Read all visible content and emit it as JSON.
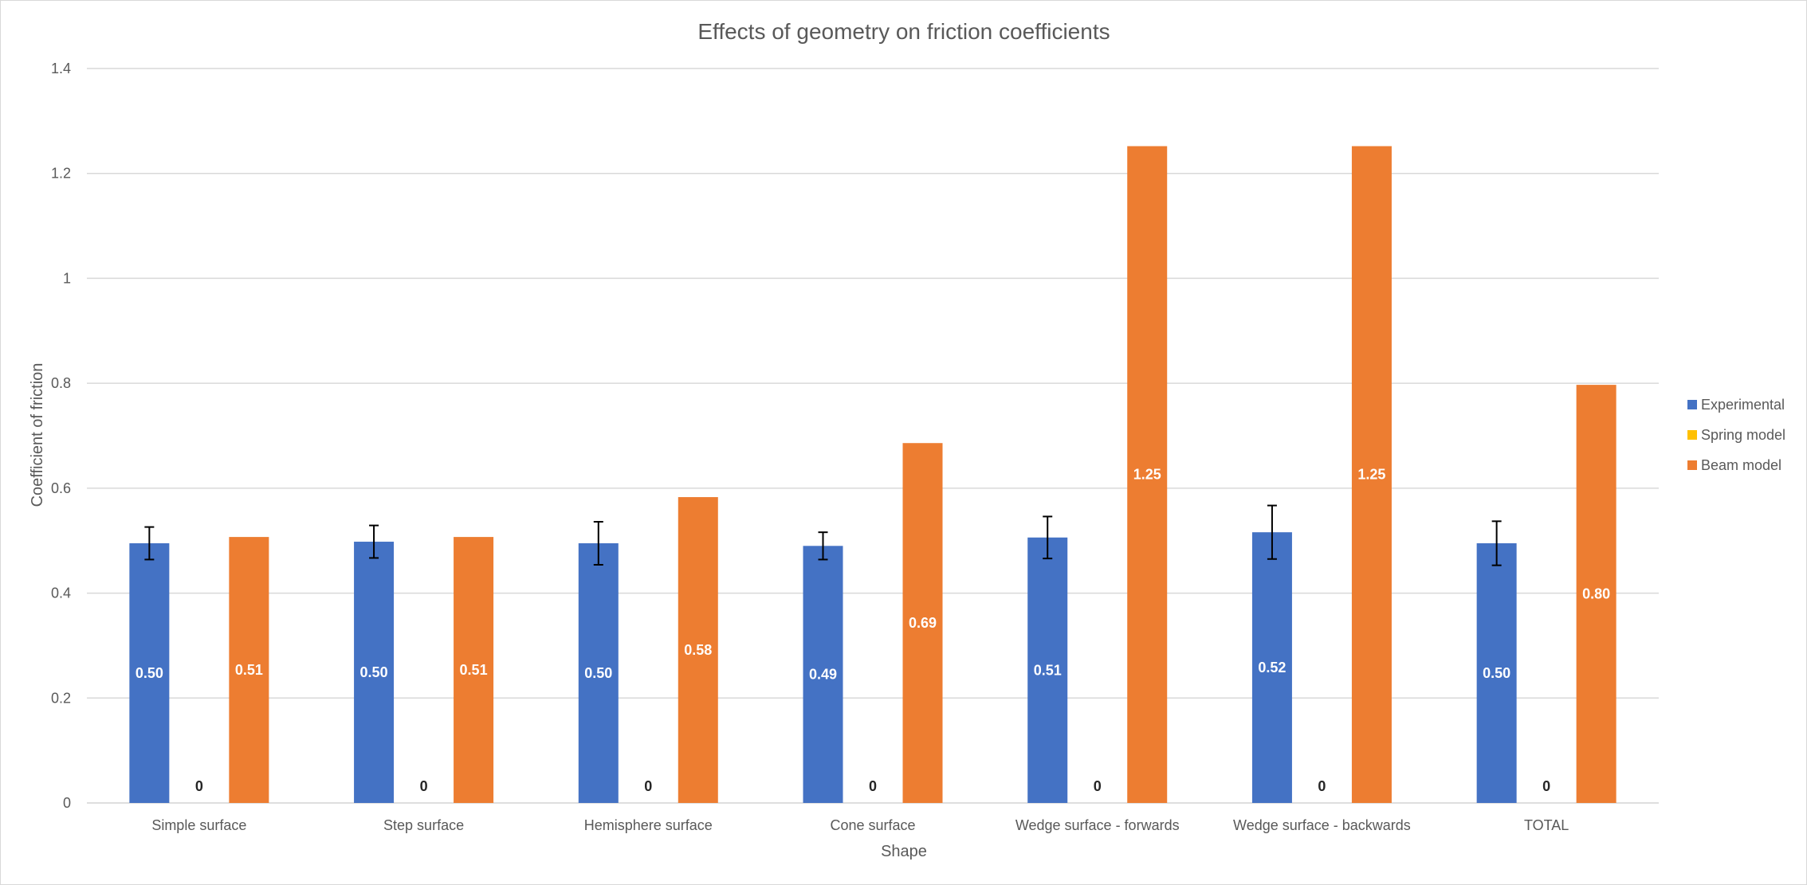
{
  "chart_data": {
    "type": "bar",
    "title": "Effects of geometry on friction coefficients",
    "xlabel": "Shape",
    "ylabel": "Coefficient of friction",
    "ylim": [
      0,
      1.4
    ],
    "yticks": [
      0,
      0.2,
      0.4,
      0.6,
      0.8,
      1,
      1.2,
      1.4
    ],
    "ytick_labels": [
      "0",
      "0.2",
      "0.4",
      "0.6",
      "0.8",
      "1",
      "1.2",
      "1.4"
    ],
    "grid": true,
    "legend_position": "right",
    "categories": [
      "Simple surface",
      "Step surface",
      "Hemisphere surface",
      "Cone surface",
      "Wedge surface - forwards",
      "Wedge surface - backwards",
      "TOTAL"
    ],
    "series": [
      {
        "name": "Experimental",
        "color": "#4472C4",
        "values": [
          0.495,
          0.498,
          0.495,
          0.49,
          0.506,
          0.516,
          0.495
        ],
        "labels": [
          "0.50",
          "0.50",
          "0.50",
          "0.49",
          "0.51",
          "0.52",
          "0.50"
        ],
        "label_color": "#FFFFFF",
        "error": [
          0.031,
          0.031,
          0.041,
          0.026,
          0.04,
          0.051,
          0.042
        ]
      },
      {
        "name": "Spring model",
        "color": "#FFC000",
        "values": [
          0,
          0,
          0,
          0,
          0,
          0,
          0
        ],
        "labels": [
          "0",
          "0",
          "0",
          "0",
          "0",
          "0",
          "0"
        ],
        "label_color": "#262626"
      },
      {
        "name": "Beam model",
        "color": "#ED7D31",
        "values": [
          0.507,
          0.507,
          0.583,
          0.686,
          1.252,
          1.252,
          0.797
        ],
        "labels": [
          "0.51",
          "0.51",
          "0.58",
          "0.69",
          "1.25",
          "1.25",
          "0.80"
        ],
        "label_color": "#FFFFFF"
      }
    ]
  }
}
